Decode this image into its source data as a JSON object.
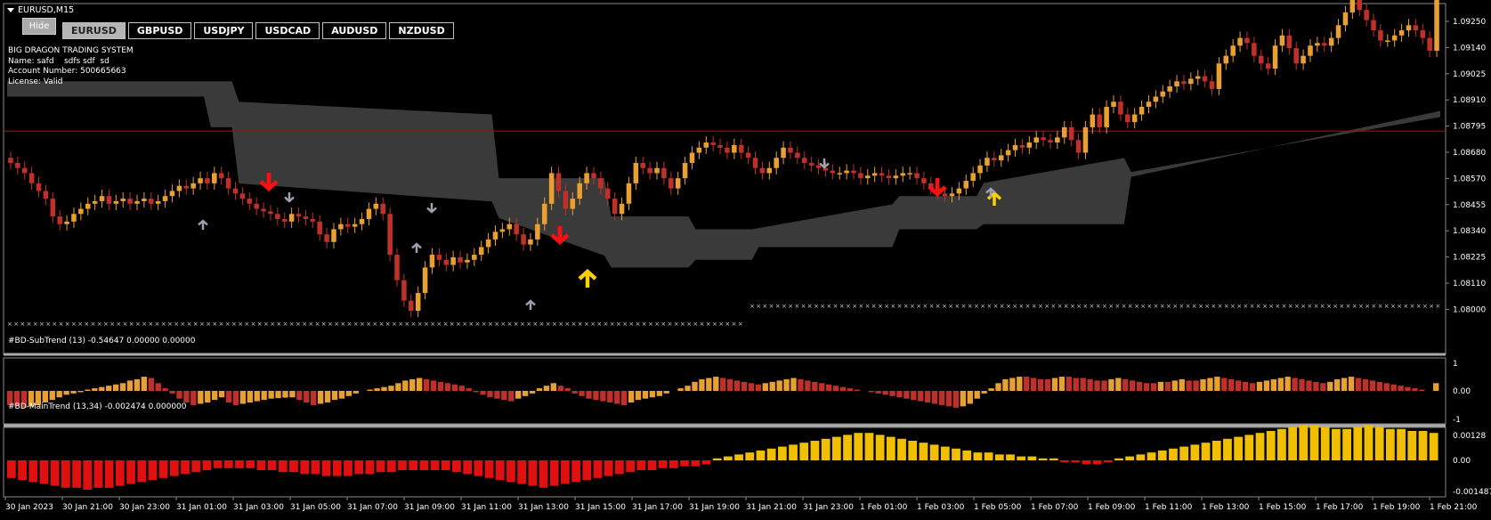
{
  "window": {
    "title": "EURUSD,M15"
  },
  "hide_button": "Hide",
  "symbols": [
    {
      "label": "EURUSD",
      "active": true
    },
    {
      "label": "GBPUSD",
      "active": false
    },
    {
      "label": "USDJPY",
      "active": false
    },
    {
      "label": "USDCAD",
      "active": false
    },
    {
      "label": "AUDUSD",
      "active": false
    },
    {
      "label": "NZDUSD",
      "active": false
    }
  ],
  "info": {
    "system": "BIG DRAGON TRADING SYSTEM",
    "name": "Name: safd    sdfs sdf  sd",
    "account": "Account Number: 500665663",
    "license": "License: Valid"
  },
  "price_axis": {
    "ticks": [
      "1.09250",
      "1.09140",
      "1.09025",
      "1.08910",
      "1.08795",
      "1.08680",
      "1.08570",
      "1.08455",
      "1.08340",
      "1.08225",
      "1.08110",
      "1.08000"
    ],
    "min": 1.08,
    "max": 1.0925,
    "level_line": 1.08785,
    "level_color": "#c00000"
  },
  "time_axis": [
    "30 Jan 2023",
    "30 Jan 21:00",
    "30 Jan 23:00",
    "31 Jan 01:00",
    "31 Jan 03:00",
    "31 Jan 05:00",
    "31 Jan 07:00",
    "31 Jan 09:00",
    "31 Jan 11:00",
    "31 Jan 13:00",
    "31 Jan 15:00",
    "31 Jan 17:00",
    "31 Jan 19:00",
    "31 Jan 21:00",
    "31 Jan 23:00",
    "1 Feb 01:00",
    "1 Feb 03:00",
    "1 Feb 05:00",
    "1 Feb 07:00",
    "1 Feb 09:00",
    "1 Feb 11:00",
    "1 Feb 13:00",
    "1 Feb 15:00",
    "1 Feb 17:00",
    "1 Feb 19:00",
    "1 Feb 21:00"
  ],
  "subtrend": {
    "label": "#BD-SubTrend (13) -0.54647 0.00000 0.00000",
    "ticks": [
      "1",
      "0.00",
      "-1"
    ]
  },
  "maintrend": {
    "label": "#BD-MainTrend (13,34) -0.002474 0.000000",
    "ticks": [
      "0.00128",
      "0.00",
      "-0.001487"
    ]
  },
  "colors": {
    "bull": "#e8a030",
    "bear": "#c0302a",
    "cloud": "#3a3a3a",
    "arrow_down": "#ff1010",
    "arrow_up": "#ffd000",
    "arrow_small": "#a0a0b0",
    "main_pos": "#f0c000",
    "main_neg": "#e01010"
  },
  "chart_data": {
    "type": "candlestick",
    "closes": [
      1.0866,
      1.0864,
      1.0862,
      1.0858,
      1.0855,
      1.0852,
      1.0845,
      1.0842,
      1.0843,
      1.0846,
      1.0848,
      1.085,
      1.0851,
      1.0853,
      1.085,
      1.0851,
      1.0852,
      1.085,
      1.0851,
      1.0852,
      1.085,
      1.0851,
      1.0853,
      1.0855,
      1.0857,
      1.0856,
      1.0858,
      1.086,
      1.0858,
      1.0862,
      1.086,
      1.0856,
      1.0854,
      1.0852,
      1.085,
      1.0848,
      1.0847,
      1.0846,
      1.0844,
      1.0843,
      1.0846,
      1.0845,
      1.0844,
      1.0843,
      1.0838,
      1.0835,
      1.084,
      1.0842,
      1.0841,
      1.0842,
      1.0844,
      1.0848,
      1.085,
      1.0846,
      1.083,
      1.082,
      1.0812,
      1.0808,
      1.0815,
      1.0825,
      1.083,
      1.0828,
      1.0826,
      1.0829,
      1.0827,
      1.0828,
      1.083,
      1.0833,
      1.0836,
      1.0839,
      1.084,
      1.0842,
      1.0838,
      1.0834,
      1.0836,
      1.0842,
      1.085,
      1.0862,
      1.0855,
      1.0848,
      1.0852,
      1.0858,
      1.0862,
      1.086,
      1.0856,
      1.0852,
      1.0846,
      1.085,
      1.0858,
      1.0866,
      1.0864,
      1.0862,
      1.0864,
      1.086,
      1.0856,
      1.086,
      1.0866,
      1.087,
      1.0872,
      1.0874,
      1.0873,
      1.0872,
      1.087,
      1.0873,
      1.087,
      1.0868,
      1.0864,
      1.0862,
      1.0864,
      1.0868,
      1.0872,
      1.087,
      1.0868,
      1.0866,
      1.0865,
      1.0864,
      1.0863,
      1.0862,
      1.0862,
      1.0863,
      1.0862,
      1.086,
      1.0861,
      1.0862,
      1.0861,
      1.086,
      1.0861,
      1.0862,
      1.0862,
      1.086,
      1.0858,
      1.0856,
      1.0854,
      1.0853,
      1.0854,
      1.0856,
      1.0859,
      1.0862,
      1.0865,
      1.0868,
      1.0867,
      1.0869,
      1.0871,
      1.0873,
      1.0872,
      1.0874,
      1.0876,
      1.0875,
      1.0874,
      1.0876,
      1.088,
      1.0875,
      1.087,
      1.088,
      1.0885,
      1.088,
      1.0888,
      1.089,
      1.0885,
      1.0882,
      1.0885,
      1.0888,
      1.089,
      1.0892,
      1.0894,
      1.0896,
      1.0898,
      1.0897,
      1.0899,
      1.09,
      1.0898,
      1.0895,
      1.0905,
      1.0908,
      1.0912,
      1.0915,
      1.0913,
      1.0908,
      1.0905,
      1.0903,
      1.0912,
      1.0916,
      1.0911,
      1.0905,
      1.0908,
      1.0912,
      1.0913,
      1.0912,
      1.0915,
      1.092,
      1.0925,
      1.093,
      1.0926,
      1.0922,
      1.0918,
      1.0914,
      1.0914,
      1.0916,
      1.0918,
      1.092,
      1.0918,
      1.0915,
      1.091,
      1.093
    ],
    "subtrend": [
      -0.55,
      -0.6,
      -0.65,
      -0.6,
      -0.55,
      -0.45,
      -0.35,
      -0.25,
      -0.15,
      -0.1,
      -0.05,
      0.05,
      0.1,
      0.15,
      0.2,
      0.25,
      0.3,
      0.4,
      0.45,
      0.55,
      0.5,
      0.3,
      0.1,
      -0.1,
      -0.3,
      -0.45,
      -0.55,
      -0.5,
      -0.45,
      -0.35,
      -0.25,
      -0.45,
      -0.55,
      -0.5,
      -0.45,
      -0.4,
      -0.35,
      -0.3,
      -0.28,
      -0.26,
      -0.25,
      -0.35,
      -0.45,
      -0.55,
      -0.5,
      -0.45,
      -0.35,
      -0.3,
      -0.2,
      -0.1,
      0.0,
      0.05,
      0.1,
      0.15,
      0.2,
      0.3,
      0.4,
      0.45,
      0.5,
      0.45,
      0.4,
      0.35,
      0.3,
      0.25,
      0.2,
      0.1,
      -0.05,
      -0.15,
      -0.25,
      -0.3,
      -0.35,
      -0.4,
      -0.3,
      -0.2,
      -0.1,
      0.1,
      0.2,
      0.3,
      0.2,
      0.1,
      -0.1,
      -0.2,
      -0.3,
      -0.35,
      -0.4,
      -0.45,
      -0.5,
      -0.55,
      -0.45,
      -0.35,
      -0.3,
      -0.25,
      -0.2,
      -0.1,
      0.0,
      0.1,
      0.2,
      0.35,
      0.45,
      0.5,
      0.55,
      0.5,
      0.45,
      0.4,
      0.35,
      0.3,
      0.25,
      0.3,
      0.35,
      0.4,
      0.45,
      0.5,
      0.45,
      0.4,
      0.35,
      0.3,
      0.25,
      0.2,
      0.15,
      0.1,
      0.05,
      0.0,
      -0.05,
      -0.1,
      -0.15,
      -0.2,
      -0.25,
      -0.3,
      -0.35,
      -0.4,
      -0.45,
      -0.5,
      -0.55,
      -0.6,
      -0.65,
      -0.6,
      -0.5,
      -0.3,
      -0.1,
      0.1,
      0.3,
      0.45,
      0.5,
      0.55,
      0.55,
      0.5,
      0.45,
      0.45,
      0.5,
      0.55,
      0.55,
      0.5,
      0.5,
      0.45,
      0.4,
      0.4,
      0.45,
      0.5,
      0.45,
      0.4,
      0.35,
      0.3,
      0.3,
      0.35,
      0.35,
      0.4,
      0.45,
      0.4,
      0.4,
      0.45,
      0.5,
      0.55,
      0.5,
      0.45,
      0.4,
      0.35,
      0.3,
      0.35,
      0.4,
      0.45,
      0.5,
      0.55,
      0.5,
      0.45,
      0.4,
      0.35,
      0.3,
      0.35,
      0.45,
      0.5,
      0.55,
      0.5,
      0.45,
      0.4,
      0.35,
      0.3,
      0.25,
      0.2,
      0.15,
      0.1,
      0.05,
      0.0,
      0.3
    ],
    "maintrend": [
      -0.0009,
      -0.001,
      -0.0011,
      -0.0012,
      -0.0013,
      -0.0014,
      -0.0014,
      -0.0015,
      -0.0014,
      -0.0014,
      -0.0013,
      -0.0012,
      -0.0011,
      -0.001,
      -0.0009,
      -0.0008,
      -0.0007,
      -0.0006,
      -0.0005,
      -0.0004,
      -0.0004,
      -0.0004,
      -0.0004,
      -0.0005,
      -0.0005,
      -0.0006,
      -0.0006,
      -0.0007,
      -0.0007,
      -0.0008,
      -0.0008,
      -0.0008,
      -0.0007,
      -0.0007,
      -0.0006,
      -0.0006,
      -0.0005,
      -0.0005,
      -0.0005,
      -0.0005,
      -0.0005,
      -0.0006,
      -0.0007,
      -0.0008,
      -0.0009,
      -0.001,
      -0.0011,
      -0.0012,
      -0.0013,
      -0.0014,
      -0.0013,
      -0.0012,
      -0.0011,
      -0.001,
      -0.0009,
      -0.0008,
      -0.0007,
      -0.0006,
      -0.0005,
      -0.0005,
      -0.0004,
      -0.0004,
      -0.0003,
      -0.0003,
      -0.0002,
      0.0001,
      0.0002,
      0.0003,
      0.0004,
      0.0005,
      0.0006,
      0.0007,
      0.0008,
      0.0009,
      0.001,
      0.0011,
      0.0012,
      0.0013,
      0.0014,
      0.0014,
      0.0013,
      0.0012,
      0.0011,
      0.001,
      0.0009,
      0.0008,
      0.0007,
      0.0006,
      0.0005,
      0.0004,
      0.0004,
      0.0003,
      0.0003,
      0.0002,
      0.0002,
      0.0001,
      0.0001,
      -0.0001,
      -0.0001,
      -0.0002,
      -0.0002,
      -0.0001,
      0.0001,
      0.0002,
      0.0003,
      0.0004,
      0.0005,
      0.0006,
      0.0007,
      0.0008,
      0.0009,
      0.001,
      0.0011,
      0.0012,
      0.0013,
      0.0014,
      0.0015,
      0.0016,
      0.0017,
      0.0018,
      0.0018,
      0.0017,
      0.0016,
      0.0016,
      0.0017,
      0.0018,
      0.0017,
      0.0016,
      0.0016,
      0.0015,
      0.0015,
      0.0014
    ]
  }
}
